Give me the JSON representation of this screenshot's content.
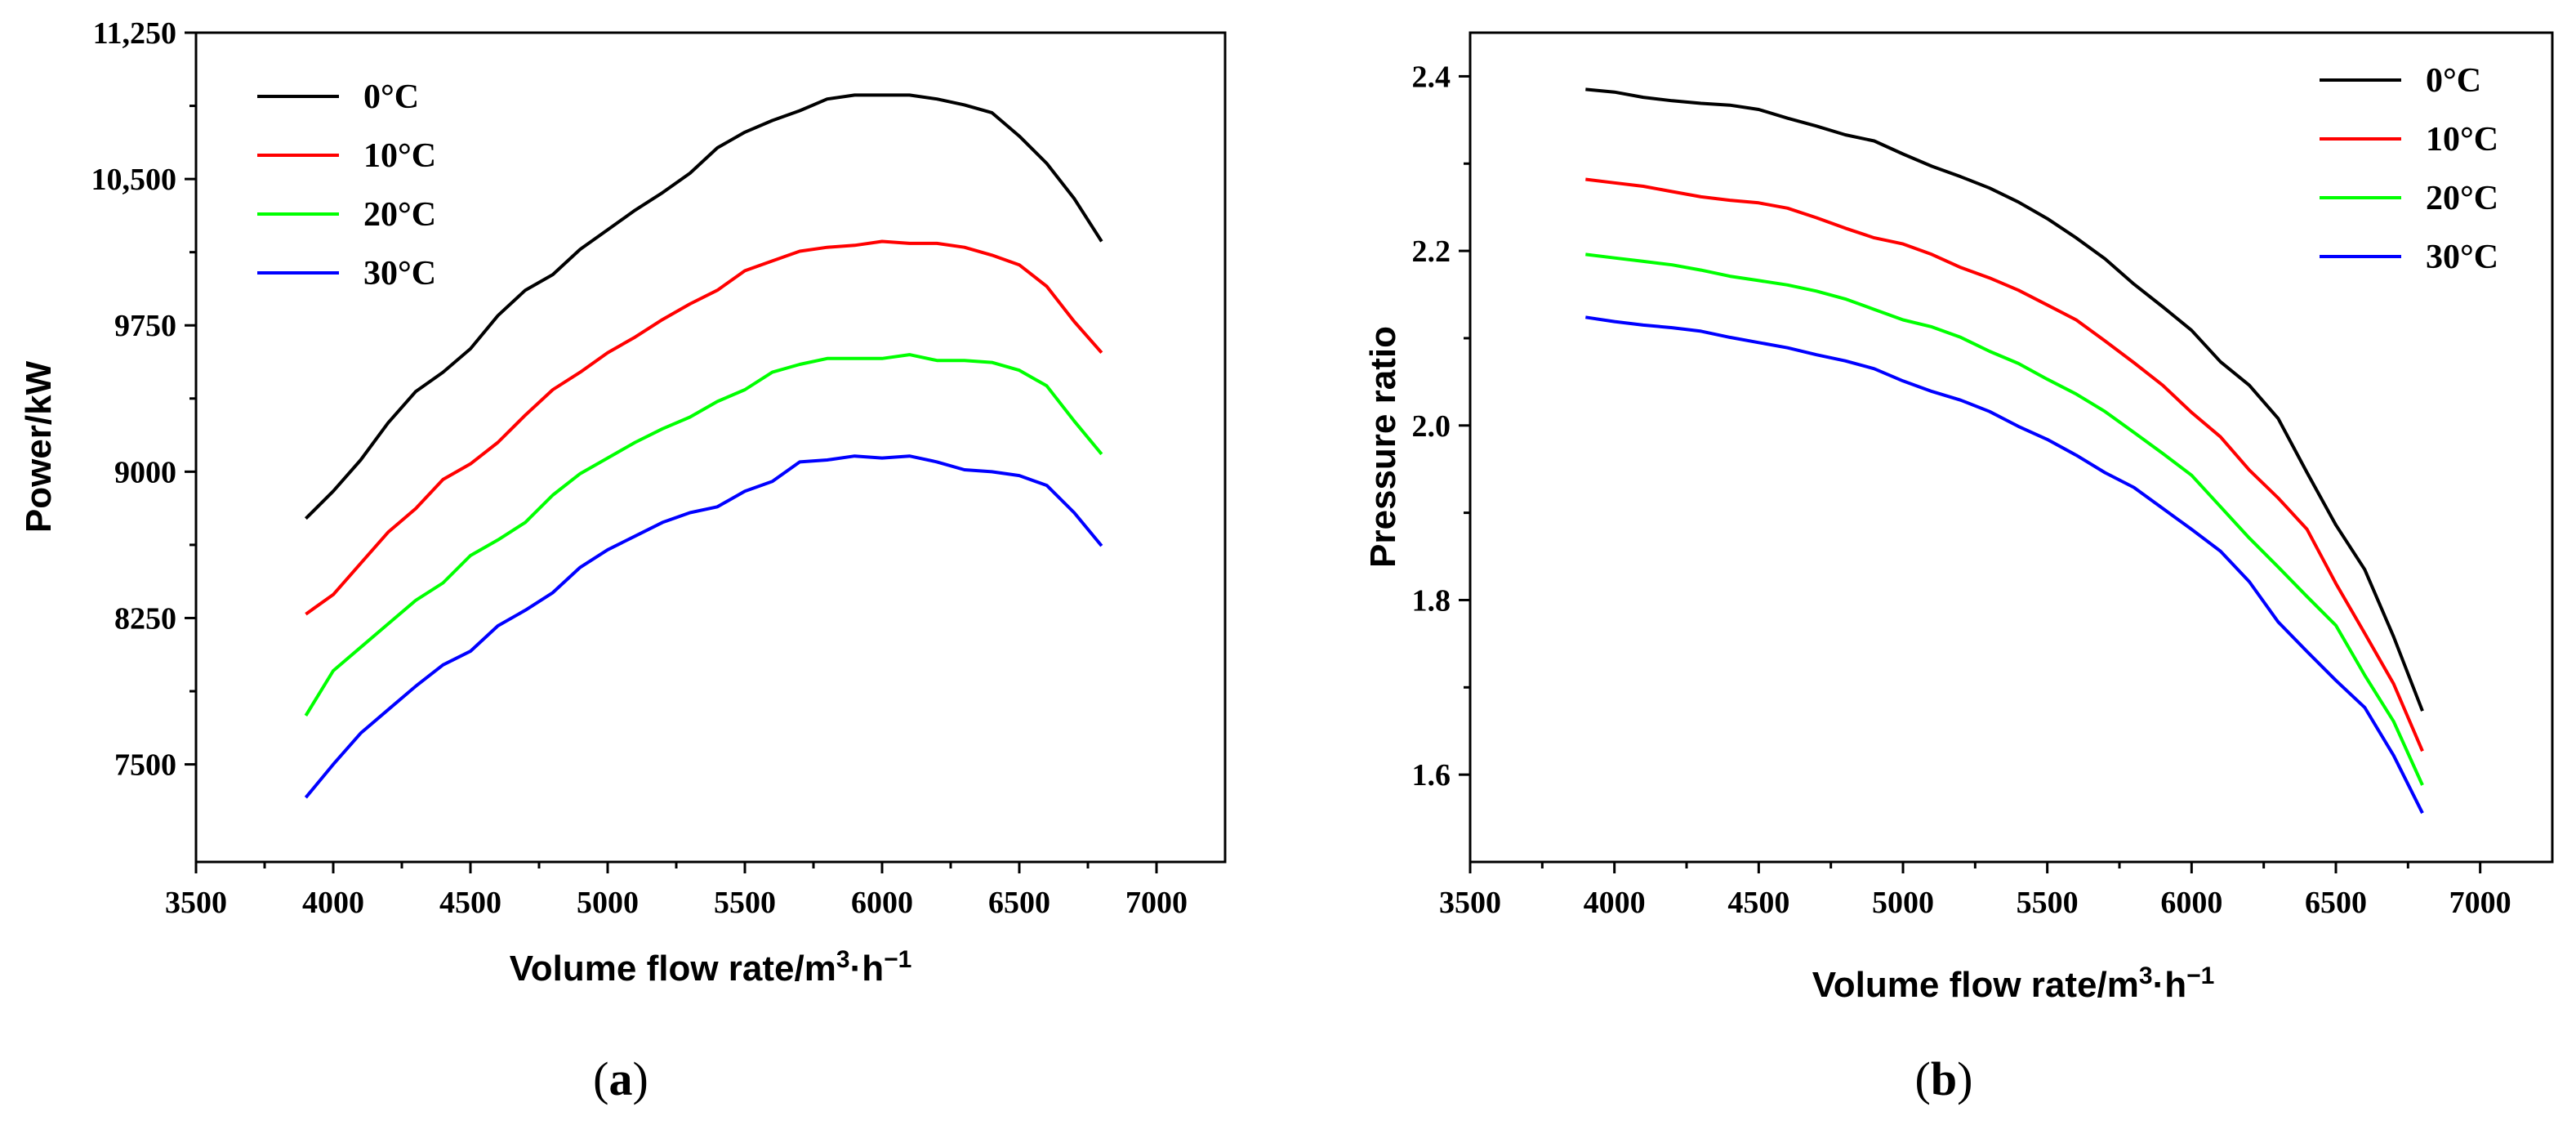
{
  "chart_data": [
    {
      "type": "line",
      "panel_label": "a",
      "xlabel": "Volume flow rate/m",
      "xlabel_sup": "3",
      "xlabel_tail": "·h",
      "xlabel_sup2": "−1",
      "ylabel": "Power/kW",
      "xlim": [
        3500,
        7250
      ],
      "ylim": [
        7000,
        11250
      ],
      "xticks": [
        3500,
        4000,
        4500,
        5000,
        5500,
        6000,
        6500,
        7000
      ],
      "yticks": [
        7500,
        8250,
        9000,
        9750,
        10500,
        11250
      ],
      "ytick_labels": [
        "7500",
        "8250",
        "9000",
        "9750",
        "10,500",
        "11,250"
      ],
      "legend_position": "top-left",
      "x": [
        3900,
        4000,
        4100,
        4200,
        4300,
        4400,
        4500,
        4600,
        4700,
        4800,
        4900,
        5000,
        5100,
        5200,
        5300,
        5400,
        5500,
        5600,
        5700,
        5800,
        5900,
        6000,
        6100,
        6200,
        6300,
        6400,
        6500,
        6600,
        6700,
        6800
      ],
      "series": [
        {
          "name": "0°C",
          "color": "#000000",
          "values": [
            8760,
            8900,
            9060,
            9250,
            9410,
            9510,
            9630,
            9800,
            9930,
            10010,
            10140,
            10240,
            10340,
            10430,
            10530,
            10660,
            10740,
            10800,
            10850,
            10910,
            10930,
            10930,
            10930,
            10910,
            10880,
            10840,
            10720,
            10580,
            10400,
            10180
          ]
        },
        {
          "name": "10°C",
          "color": "#ff0000",
          "values": [
            8270,
            8370,
            8530,
            8690,
            8810,
            8960,
            9040,
            9150,
            9290,
            9420,
            9510,
            9610,
            9690,
            9780,
            9860,
            9930,
            10030,
            10080,
            10130,
            10150,
            10160,
            10180,
            10170,
            10170,
            10150,
            10110,
            10060,
            9950,
            9770,
            9610
          ]
        },
        {
          "name": "20°C",
          "color": "#00ff00",
          "values": [
            7750,
            7980,
            8100,
            8220,
            8340,
            8430,
            8570,
            8650,
            8740,
            8880,
            8990,
            9070,
            9150,
            9220,
            9280,
            9360,
            9420,
            9510,
            9550,
            9580,
            9580,
            9580,
            9600,
            9570,
            9570,
            9560,
            9520,
            9440,
            9260,
            9090
          ]
        },
        {
          "name": "30°C",
          "color": "#0000ff",
          "values": [
            7330,
            7500,
            7660,
            7780,
            7900,
            8010,
            8080,
            8210,
            8290,
            8380,
            8510,
            8600,
            8670,
            8740,
            8790,
            8820,
            8900,
            8950,
            9050,
            9060,
            9080,
            9070,
            9080,
            9050,
            9010,
            9000,
            8980,
            8930,
            8790,
            8620
          ]
        }
      ]
    },
    {
      "type": "line",
      "panel_label": "b",
      "xlabel": "Volume flow rate/m",
      "xlabel_sup": "3",
      "xlabel_tail": "·h",
      "xlabel_sup2": "−1",
      "ylabel": "Pressure ratio",
      "xlim": [
        3500,
        7250
      ],
      "ylim": [
        1.5,
        2.45
      ],
      "xticks": [
        3500,
        4000,
        4500,
        5000,
        5500,
        6000,
        6500,
        7000
      ],
      "yticks": [
        1.6,
        1.8,
        2.0,
        2.2,
        2.4
      ],
      "ytick_labels": [
        "1.6",
        "1.8",
        "2.0",
        "2.2",
        "2.4"
      ],
      "legend_position": "top-right",
      "x": [
        3900,
        4000,
        4100,
        4200,
        4300,
        4400,
        4500,
        4600,
        4700,
        4800,
        4900,
        5000,
        5100,
        5200,
        5300,
        5400,
        5500,
        5600,
        5700,
        5800,
        5900,
        6000,
        6100,
        6200,
        6300,
        6400,
        6500,
        6600,
        6700,
        6800
      ],
      "series": [
        {
          "name": "0°C",
          "color": "#000000",
          "values": [
            2.385,
            2.382,
            2.376,
            2.372,
            2.369,
            2.367,
            2.362,
            2.352,
            2.343,
            2.333,
            2.326,
            2.311,
            2.297,
            2.285,
            2.272,
            2.256,
            2.237,
            2.215,
            2.191,
            2.162,
            2.136,
            2.109,
            2.073,
            2.046,
            2.008,
            1.946,
            1.886,
            1.835,
            1.758,
            1.673
          ]
        },
        {
          "name": "10°C",
          "color": "#ff0000",
          "values": [
            2.282,
            2.278,
            2.274,
            2.268,
            2.262,
            2.258,
            2.255,
            2.249,
            2.238,
            2.226,
            2.215,
            2.208,
            2.196,
            2.181,
            2.169,
            2.155,
            2.138,
            2.121,
            2.097,
            2.072,
            2.046,
            2.015,
            1.987,
            1.949,
            1.917,
            1.881,
            1.819,
            1.762,
            1.704,
            1.627
          ]
        },
        {
          "name": "20°C",
          "color": "#00ff00",
          "values": [
            2.196,
            2.192,
            2.188,
            2.184,
            2.178,
            2.171,
            2.166,
            2.161,
            2.154,
            2.145,
            2.133,
            2.121,
            2.113,
            2.101,
            2.085,
            2.071,
            2.053,
            2.036,
            2.016,
            1.992,
            1.968,
            1.943,
            1.907,
            1.871,
            1.838,
            1.804,
            1.771,
            1.714,
            1.661,
            1.588
          ]
        },
        {
          "name": "30°C",
          "color": "#0000ff",
          "values": [
            2.124,
            2.119,
            2.115,
            2.112,
            2.108,
            2.101,
            2.095,
            2.089,
            2.081,
            2.074,
            2.065,
            2.051,
            2.039,
            2.029,
            2.016,
            1.999,
            1.984,
            1.966,
            1.946,
            1.929,
            1.905,
            1.881,
            1.856,
            1.821,
            1.775,
            1.741,
            1.708,
            1.677,
            1.622,
            1.556
          ]
        }
      ]
    }
  ]
}
